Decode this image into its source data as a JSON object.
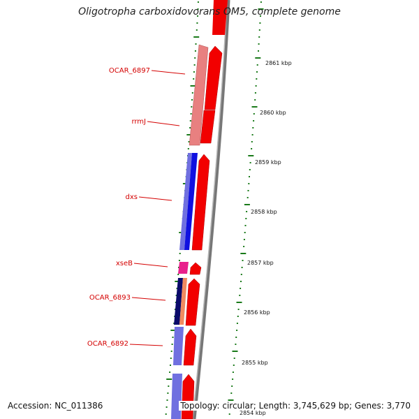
{
  "title": "Oligotropha carboxidovorans OM5, complete genome",
  "accession": "Accession: NC_011386",
  "topology": "Topology: circular; Length: 3,745,629 bp; Genes: 3,770",
  "gene_labels": [
    "OCAR_6897",
    "rrmJ",
    "dxs",
    "xseB",
    "OCAR_6893",
    "OCAR_6892"
  ],
  "scale_labels": [
    "2861 kbp",
    "2860 kbp",
    "2859 kbp",
    "2858 kbp",
    "2857 kbp",
    "2856 kbp",
    "2855 kbp",
    "2854 kbp"
  ],
  "colors": {
    "forward_strand": "#ee0000",
    "backbone": "#888888",
    "label": "#d40000",
    "tick": "#1a7a1a",
    "gene_pink": "#e88080",
    "gene_purple": "#7070e0",
    "gene_blue": "#1010e0",
    "gene_magenta": "#e8208c",
    "gene_navy": "#0a0a6a",
    "gene_salmon": "#f08a60"
  }
}
